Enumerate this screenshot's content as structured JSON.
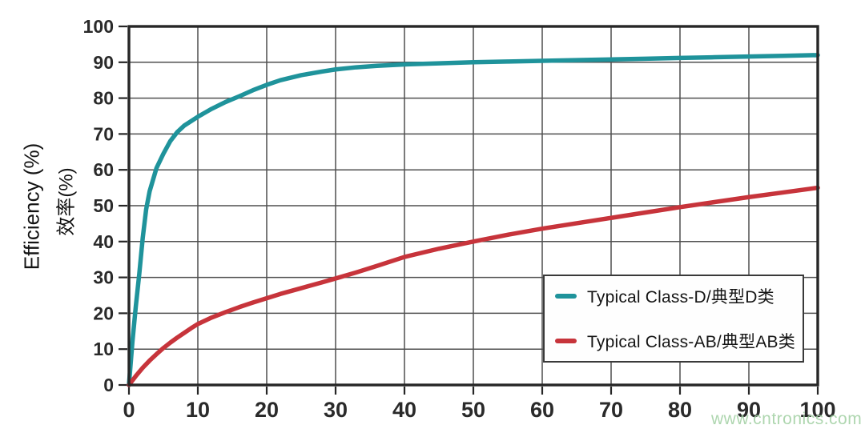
{
  "watermark": "www.cntronics.com",
  "axes": {
    "y_label_en": "Efficiency (%)",
    "y_label_zh": "效率(%)",
    "x_tick_labels": [
      "0",
      "10",
      "20",
      "30",
      "40",
      "50",
      "60",
      "70",
      "80",
      "90",
      "100"
    ],
    "y_tick_labels": [
      "0",
      "10",
      "20",
      "30",
      "40",
      "50",
      "60",
      "70",
      "80",
      "90",
      "100"
    ]
  },
  "colors": {
    "class_d": "#1f939b",
    "class_ab": "#c7343b",
    "grid": "#4f4f4f",
    "frame": "#262626",
    "tick_text": "#2a2a2a",
    "watermark_green": "#a0d0a2"
  },
  "chart_data": {
    "type": "line",
    "title": "",
    "xlabel": "",
    "ylabel": "Efficiency (%) / 效率(%)",
    "xlim": [
      0,
      100
    ],
    "ylim": [
      0,
      100
    ],
    "x_ticks": [
      0,
      10,
      20,
      30,
      40,
      50,
      60,
      70,
      80,
      90,
      100
    ],
    "y_ticks": [
      0,
      10,
      20,
      30,
      40,
      50,
      60,
      70,
      80,
      90,
      100
    ],
    "grid": true,
    "legend_position": "lower right",
    "series": [
      {
        "name": "Typical Class-D/典型D类",
        "color": "#1f939b",
        "points": [
          [
            0,
            0
          ],
          [
            0.5,
            12
          ],
          [
            1,
            22
          ],
          [
            1.5,
            31
          ],
          [
            2,
            41
          ],
          [
            2.5,
            49
          ],
          [
            3,
            54
          ],
          [
            4,
            60.5
          ],
          [
            5,
            64.5
          ],
          [
            6,
            68
          ],
          [
            7,
            70.5
          ],
          [
            8,
            72.3
          ],
          [
            10,
            74.8
          ],
          [
            12,
            77
          ],
          [
            14,
            78.9
          ],
          [
            16,
            80.5
          ],
          [
            18,
            82.2
          ],
          [
            20,
            83.7
          ],
          [
            22,
            85
          ],
          [
            25,
            86.4
          ],
          [
            28,
            87.4
          ],
          [
            30,
            88
          ],
          [
            33,
            88.6
          ],
          [
            36,
            89
          ],
          [
            40,
            89.4
          ],
          [
            45,
            89.7
          ],
          [
            50,
            90
          ],
          [
            55,
            90.2
          ],
          [
            60,
            90.4
          ],
          [
            65,
            90.6
          ],
          [
            70,
            90.8
          ],
          [
            75,
            91
          ],
          [
            80,
            91.2
          ],
          [
            85,
            91.4
          ],
          [
            90,
            91.6
          ],
          [
            95,
            91.8
          ],
          [
            100,
            92
          ]
        ]
      },
      {
        "name": "Typical Class-AB/典型AB类",
        "color": "#c7343b",
        "points": [
          [
            0,
            0
          ],
          [
            1,
            2.5
          ],
          [
            2,
            4.8
          ],
          [
            3,
            6.8
          ],
          [
            4,
            8.6
          ],
          [
            5,
            10.3
          ],
          [
            6,
            11.8
          ],
          [
            7,
            13.2
          ],
          [
            8,
            14.5
          ],
          [
            9,
            15.8
          ],
          [
            10,
            17
          ],
          [
            12,
            18.8
          ],
          [
            14,
            20.3
          ],
          [
            16,
            21.7
          ],
          [
            18,
            23
          ],
          [
            20,
            24.2
          ],
          [
            22,
            25.4
          ],
          [
            25,
            27
          ],
          [
            28,
            28.6
          ],
          [
            30,
            29.7
          ],
          [
            33,
            31.4
          ],
          [
            36,
            33.2
          ],
          [
            40,
            35.7
          ],
          [
            45,
            38
          ],
          [
            50,
            40
          ],
          [
            55,
            41.9
          ],
          [
            60,
            43.6
          ],
          [
            65,
            45.1
          ],
          [
            70,
            46.6
          ],
          [
            75,
            48.1
          ],
          [
            80,
            49.6
          ],
          [
            85,
            51
          ],
          [
            90,
            52.4
          ],
          [
            95,
            53.7
          ],
          [
            100,
            55
          ]
        ]
      }
    ]
  }
}
